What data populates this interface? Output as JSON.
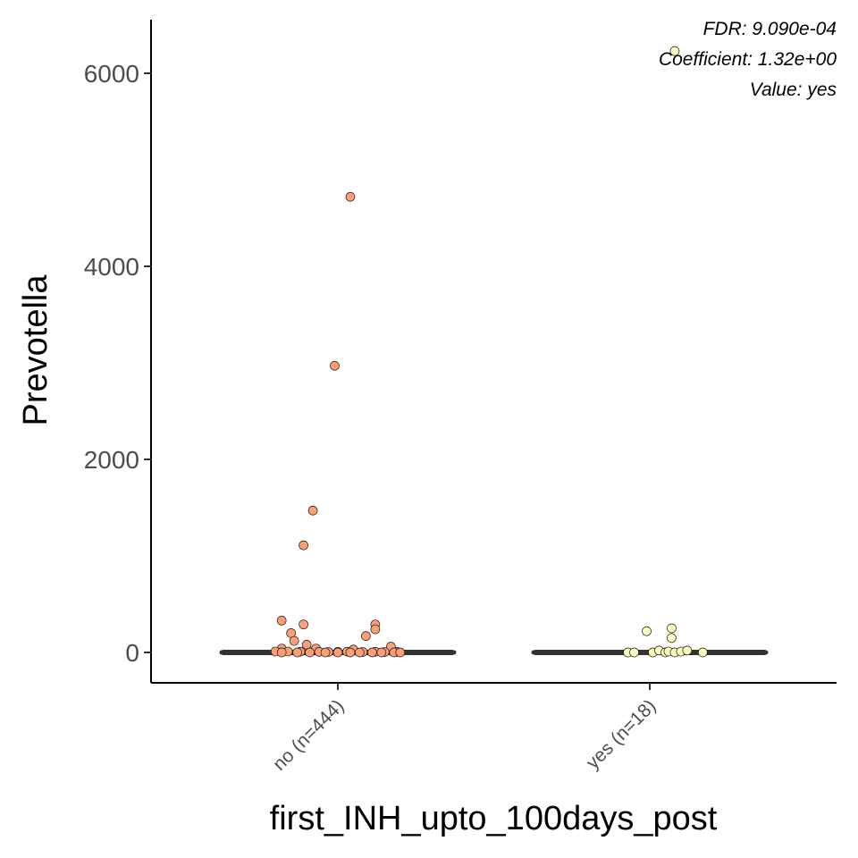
{
  "chart_data": {
    "type": "box",
    "title": "",
    "xlabel": "first_INH_upto_100days_post",
    "ylabel": "Prevotella",
    "ylim": [
      -310,
      6560
    ],
    "yticks": [
      0,
      2000,
      4000,
      6000
    ],
    "yticklabels": [
      "0",
      "2000",
      "4000",
      "6000"
    ],
    "grid": false,
    "legend": "none",
    "annotations": [
      "FDR: 9.090e-04",
      "Coefficient: 1.32e+00",
      "Value: yes"
    ],
    "categories": [
      "no (n=444)",
      "yes (n=18)"
    ],
    "groups": [
      {
        "category": "no (n=444)",
        "color": "#FC9F76",
        "median": 0,
        "q1": 0,
        "q3": 0,
        "points": [
          {
            "x": 0.04,
            "y": 4720
          },
          {
            "x": -0.01,
            "y": 2970
          },
          {
            "x": -0.08,
            "y": 1470
          },
          {
            "x": -0.11,
            "y": 1110
          },
          {
            "x": -0.18,
            "y": 330
          },
          {
            "x": -0.11,
            "y": 290
          },
          {
            "x": 0.12,
            "y": 290
          },
          {
            "x": 0.12,
            "y": 240
          },
          {
            "x": -0.15,
            "y": 200
          },
          {
            "x": 0.09,
            "y": 170
          },
          {
            "x": -0.14,
            "y": 120
          },
          {
            "x": -0.1,
            "y": 80
          },
          {
            "x": 0.17,
            "y": 60
          },
          {
            "x": -0.18,
            "y": 40
          },
          {
            "x": -0.07,
            "y": 40
          },
          {
            "x": 0.05,
            "y": 30
          },
          {
            "x": -0.2,
            "y": 10
          },
          {
            "x": -0.16,
            "y": 10
          },
          {
            "x": -0.12,
            "y": 8
          },
          {
            "x": -0.06,
            "y": 6
          },
          {
            "x": -0.03,
            "y": 5
          },
          {
            "x": 0.0,
            "y": 6
          },
          {
            "x": 0.03,
            "y": 8
          },
          {
            "x": 0.08,
            "y": 5
          },
          {
            "x": 0.12,
            "y": 7
          },
          {
            "x": 0.15,
            "y": 4
          },
          {
            "x": 0.19,
            "y": 6
          },
          {
            "x": -0.18,
            "y": 0
          },
          {
            "x": -0.13,
            "y": 0
          },
          {
            "x": -0.09,
            "y": 0
          },
          {
            "x": -0.04,
            "y": 0
          },
          {
            "x": 0.0,
            "y": 0
          },
          {
            "x": 0.04,
            "y": 0
          },
          {
            "x": 0.07,
            "y": 0
          },
          {
            "x": 0.11,
            "y": 0
          },
          {
            "x": 0.14,
            "y": 0
          },
          {
            "x": 0.18,
            "y": 0
          },
          {
            "x": 0.2,
            "y": 0
          }
        ]
      },
      {
        "category": "yes (n=18)",
        "color": "#FFFFBF",
        "median": 0,
        "q1": 0,
        "q3": 0,
        "points": [
          {
            "x": 0.08,
            "y": 6230
          },
          {
            "x": 0.07,
            "y": 250
          },
          {
            "x": -0.01,
            "y": 220
          },
          {
            "x": 0.07,
            "y": 150
          },
          {
            "x": -0.07,
            "y": 0
          },
          {
            "x": -0.05,
            "y": 0
          },
          {
            "x": 0.01,
            "y": 0
          },
          {
            "x": 0.03,
            "y": 20
          },
          {
            "x": 0.05,
            "y": 0
          },
          {
            "x": 0.06,
            "y": 10
          },
          {
            "x": 0.08,
            "y": 0
          },
          {
            "x": 0.1,
            "y": 10
          },
          {
            "x": 0.12,
            "y": 20
          },
          {
            "x": 0.17,
            "y": 0
          }
        ]
      }
    ]
  }
}
